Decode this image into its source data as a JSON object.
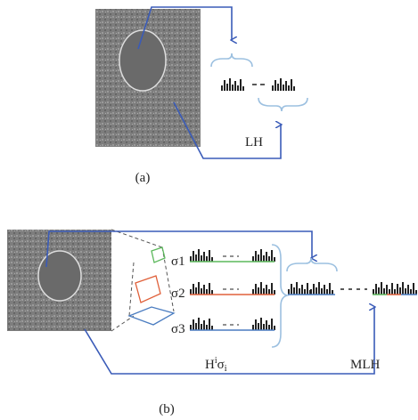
{
  "panel_a": {
    "label": "LH",
    "caption": "(a)"
  },
  "panel_b": {
    "scales": [
      "σ1",
      "σ2",
      "σ3"
    ],
    "hist_label": "H",
    "hist_sup": "i",
    "hist_sigma": "σ",
    "hist_sub": "i",
    "label": "MLH",
    "caption": "(b)"
  }
}
